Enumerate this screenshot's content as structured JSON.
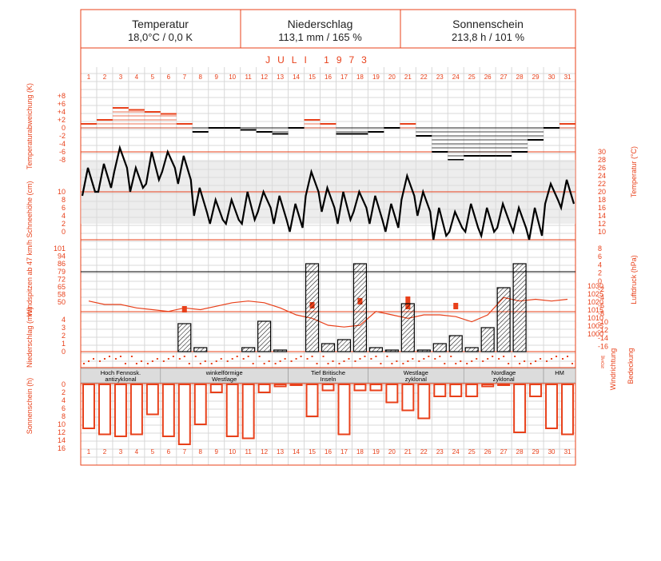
{
  "header": {
    "cells": [
      {
        "title": "Temperatur",
        "value": "18,0°C / 0,0 K"
      },
      {
        "title": "Niederschlag",
        "value": "113,1 mm / 165 %"
      },
      {
        "title": "Sonnenschein",
        "value": "213,8 h / 101 %"
      }
    ],
    "month": "JULI 1973"
  },
  "axes": {
    "temp_dev": {
      "label": "Temperaturabweichung (K)",
      "ticks": [
        "+8",
        "+6",
        "+4",
        "+2",
        "0",
        "-2",
        "-4",
        "-6",
        "-8"
      ]
    },
    "snow": {
      "label": "Schneehöhe (cm)",
      "ticks": [
        "10",
        "8",
        "6",
        "4",
        "2",
        "0"
      ]
    },
    "temperature": {
      "label": "Temperatur (°C)",
      "ticks": [
        "30",
        "28",
        "26",
        "24",
        "22",
        "20",
        "18",
        "16",
        "14",
        "12",
        "10"
      ]
    },
    "wind": {
      "label": "Windspitzen ab 47 km/h",
      "ticks": [
        "101",
        "94",
        "86",
        "79",
        "72",
        "65",
        "58",
        "50"
      ]
    },
    "pressure": {
      "label": "Luftdruck (hPa)",
      "ticks_left": [
        "8",
        "6",
        "4",
        "2",
        "0",
        "-2",
        "-4",
        "-6",
        "-8",
        "-10",
        "-12",
        "-14",
        "-16"
      ],
      "ticks_right": [
        "1030",
        "1025",
        "1020",
        "1015",
        "1010",
        "1005",
        "1000"
      ]
    },
    "precip": {
      "label": "Niederschlag (mm)",
      "ticks": [
        "4",
        "3",
        "2",
        "1",
        "0"
      ]
    },
    "wind_dir": {
      "label": "Windrichtung",
      "ticks": [
        "N",
        "O",
        "S",
        "W"
      ]
    },
    "cloud": {
      "label": "Bedeckung"
    },
    "sunshine": {
      "label": "Sonnenschein (h)",
      "ticks": [
        "0",
        "2",
        "4",
        "6",
        "8",
        "10",
        "12",
        "14",
        "16"
      ]
    }
  },
  "weather_types": [
    {
      "label": "Hoch Fennosk. antizyklonal",
      "from": 1,
      "to": 5
    },
    {
      "label": "winkelförmige Westlage",
      "from": 6,
      "to": 13
    },
    {
      "label": "Tief Britische Inseln",
      "from": 14,
      "to": 18
    },
    {
      "label": "Westlage zyklonal",
      "from": 19,
      "to": 24
    },
    {
      "label": "Nordlage zyklonal",
      "from": 25,
      "to": 29
    },
    {
      "label": "HM",
      "from": 30,
      "to": 31
    }
  ],
  "colors": {
    "accent": "#e8401a",
    "line": "#000000",
    "grid": "#d8d8d8",
    "band": "#dcdcdc"
  },
  "chart_data": {
    "type": "line",
    "title": "JULI 1973",
    "x": [
      1,
      2,
      3,
      4,
      5,
      6,
      7,
      8,
      9,
      10,
      11,
      12,
      13,
      14,
      15,
      16,
      17,
      18,
      19,
      20,
      21,
      22,
      23,
      24,
      25,
      26,
      27,
      28,
      29,
      30,
      31
    ],
    "series": [
      {
        "name": "Temperaturabweichung (K)",
        "values": [
          1,
          2,
          5,
          4.5,
          4,
          3.5,
          1,
          -1,
          0,
          0,
          -0.5,
          -1,
          -1.5,
          0,
          2,
          1,
          -1.5,
          -1.5,
          -1,
          0,
          1,
          -2,
          -6,
          -8,
          -7,
          -7,
          -7,
          -6,
          -3,
          0,
          1
        ]
      },
      {
        "name": "Temperatur (°C)",
        "values": [
          23,
          25,
          28,
          24,
          27,
          28,
          26,
          19,
          15,
          16,
          17,
          18,
          16,
          15,
          22,
          19,
          17,
          18,
          16,
          15,
          21,
          18,
          13,
          13,
          14,
          14,
          14,
          14,
          13,
          20,
          20
        ]
      },
      {
        "name": "Niederschlag (mm)",
        "values": [
          0,
          0,
          0,
          0,
          0,
          0,
          3.5,
          0.5,
          0,
          0,
          0.5,
          3.8,
          0.2,
          0,
          11,
          1,
          1.5,
          11,
          0.5,
          0.2,
          6,
          0.2,
          1,
          2,
          0.5,
          3,
          8,
          11,
          0,
          0,
          0
        ]
      },
      {
        "name": "Luftdruck (hPa)",
        "values": [
          1020,
          1018,
          1018,
          1016,
          1015,
          1014,
          1016,
          1015,
          1017,
          1019,
          1020,
          1019,
          1016,
          1012,
          1010,
          1006,
          1005,
          1006,
          1014,
          1012,
          1010,
          1012,
          1012,
          1011,
          1008,
          1012,
          1022,
          1020,
          1021,
          1020,
          1021
        ]
      },
      {
        "name": "Sonnenschein (h)",
        "values": [
          11,
          12.5,
          13,
          12.5,
          7.5,
          13,
          15,
          10,
          2,
          13,
          13.5,
          2,
          0.5,
          0,
          8,
          1.5,
          12.5,
          1.5,
          1.5,
          4.5,
          6.5,
          8.5,
          3,
          3,
          3,
          0.5,
          0,
          12,
          3,
          11,
          12.5
        ]
      }
    ]
  }
}
